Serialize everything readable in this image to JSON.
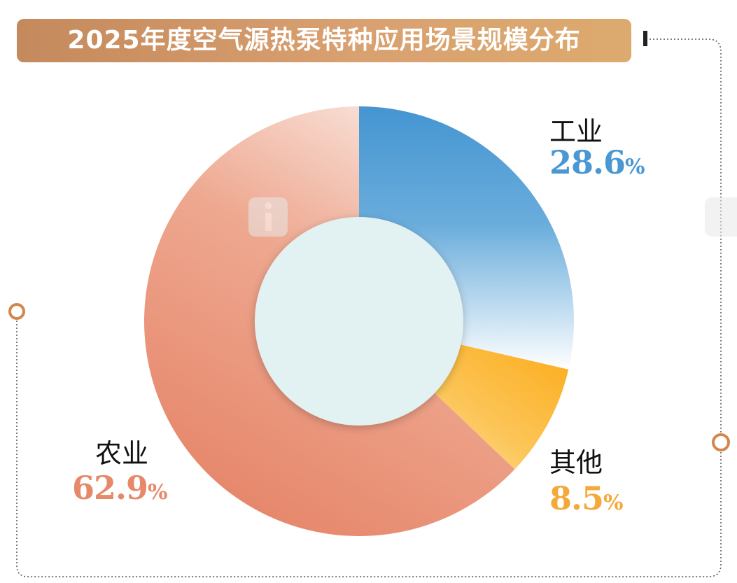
{
  "title": "2025年度空气源热泵特种应用场景规模分布",
  "colors": {
    "industry": "#4a98d3",
    "other": "#f7a21a",
    "agriculture": "#e6896a",
    "accent": "#d2874f"
  },
  "chart_data": {
    "type": "pie",
    "style": "donut",
    "title": "2025年度空气源热泵特种应用场景规模分布",
    "unit": "%",
    "slices": [
      {
        "name": "工业",
        "value": 28.6,
        "label": "28.6"
      },
      {
        "name": "其他",
        "value": 8.5,
        "label": "8.5"
      },
      {
        "name": "农业",
        "value": 62.9,
        "label": "62.9"
      }
    ],
    "legend": "none"
  }
}
